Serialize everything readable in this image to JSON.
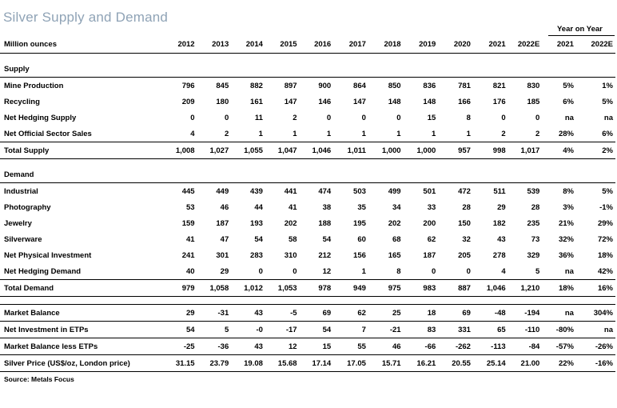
{
  "title": "Silver Supply and Demand",
  "year_on_year_label": "Year on Year",
  "units_label": "Million ounces",
  "columns": [
    "2012",
    "2013",
    "2014",
    "2015",
    "2016",
    "2017",
    "2018",
    "2019",
    "2020",
    "2021",
    "2022E",
    "2021",
    "2022E"
  ],
  "sections": {
    "supply": "Supply",
    "demand": "Demand"
  },
  "rows": {
    "mine_production": {
      "label": "Mine Production",
      "values": [
        "796",
        "845",
        "882",
        "897",
        "900",
        "864",
        "850",
        "836",
        "781",
        "821",
        "830",
        "5%",
        "1%"
      ]
    },
    "recycling": {
      "label": "Recycling",
      "values": [
        "209",
        "180",
        "161",
        "147",
        "146",
        "147",
        "148",
        "148",
        "166",
        "176",
        "185",
        "6%",
        "5%"
      ]
    },
    "net_hedging_supply": {
      "label": "Net Hedging Supply",
      "values": [
        "0",
        "0",
        "11",
        "2",
        "0",
        "0",
        "0",
        "15",
        "8",
        "0",
        "0",
        "na",
        "na"
      ]
    },
    "net_official_sector_sales": {
      "label": "Net Official Sector Sales",
      "values": [
        "4",
        "2",
        "1",
        "1",
        "1",
        "1",
        "1",
        "1",
        "1",
        "2",
        "2",
        "28%",
        "6%"
      ]
    },
    "total_supply": {
      "label": "Total Supply",
      "values": [
        "1,008",
        "1,027",
        "1,055",
        "1,047",
        "1,046",
        "1,011",
        "1,000",
        "1,000",
        "957",
        "998",
        "1,017",
        "4%",
        "2%"
      ]
    },
    "industrial": {
      "label": "Industrial",
      "values": [
        "445",
        "449",
        "439",
        "441",
        "474",
        "503",
        "499",
        "501",
        "472",
        "511",
        "539",
        "8%",
        "5%"
      ]
    },
    "photography": {
      "label": "Photography",
      "values": [
        "53",
        "46",
        "44",
        "41",
        "38",
        "35",
        "34",
        "33",
        "28",
        "29",
        "28",
        "3%",
        "-1%"
      ]
    },
    "jewelry": {
      "label": "Jewelry",
      "values": [
        "159",
        "187",
        "193",
        "202",
        "188",
        "195",
        "202",
        "200",
        "150",
        "182",
        "235",
        "21%",
        "29%"
      ]
    },
    "silverware": {
      "label": "Silverware",
      "values": [
        "41",
        "47",
        "54",
        "58",
        "54",
        "60",
        "68",
        "62",
        "32",
        "43",
        "73",
        "32%",
        "72%"
      ]
    },
    "net_physical_investment": {
      "label": "Net Physical Investment",
      "values": [
        "241",
        "301",
        "283",
        "310",
        "212",
        "156",
        "165",
        "187",
        "205",
        "278",
        "329",
        "36%",
        "18%"
      ]
    },
    "net_hedging_demand": {
      "label": "Net Hedging Demand",
      "values": [
        "40",
        "29",
        "0",
        "0",
        "12",
        "1",
        "8",
        "0",
        "0",
        "4",
        "5",
        "na",
        "42%"
      ]
    },
    "total_demand": {
      "label": "Total Demand",
      "values": [
        "979",
        "1,058",
        "1,012",
        "1,053",
        "978",
        "949",
        "975",
        "983",
        "887",
        "1,046",
        "1,210",
        "18%",
        "16%"
      ]
    },
    "market_balance": {
      "label": "Market Balance",
      "values": [
        "29",
        "-31",
        "43",
        "-5",
        "69",
        "62",
        "25",
        "18",
        "69",
        "-48",
        "-194",
        "na",
        "304%"
      ]
    },
    "net_investment_etps": {
      "label": "Net Investment in ETPs",
      "values": [
        "54",
        "5",
        "-0",
        "-17",
        "54",
        "7",
        "-21",
        "83",
        "331",
        "65",
        "-110",
        "-80%",
        "na"
      ]
    },
    "market_balance_less_etps": {
      "label": "Market Balance less ETPs",
      "values": [
        "-25",
        "-36",
        "43",
        "12",
        "15",
        "55",
        "46",
        "-66",
        "-262",
        "-113",
        "-84",
        "-57%",
        "-26%"
      ]
    },
    "silver_price": {
      "label": "Silver Price (US$/oz, London price)",
      "values": [
        "31.15",
        "23.79",
        "19.08",
        "15.68",
        "17.14",
        "17.05",
        "15.71",
        "16.21",
        "20.55",
        "25.14",
        "21.00",
        "22%",
        "-16%"
      ]
    }
  },
  "source": "Source: Metals Focus"
}
